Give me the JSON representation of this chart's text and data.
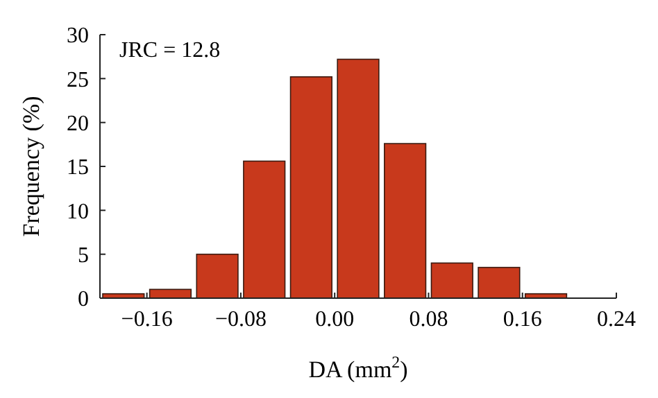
{
  "chart_data": {
    "type": "histogram",
    "xlabel": "DA (mm$^{2}$)",
    "ylabel": "Frequency (%)",
    "bins": [
      -0.2,
      -0.16,
      -0.12,
      -0.08,
      -0.04,
      0,
      0.04,
      0.08,
      0.12,
      0.16,
      0.2
    ],
    "values": [
      0.5,
      1,
      5,
      15.6,
      25.2,
      27.2,
      17.6,
      4,
      3.5,
      0.5
    ],
    "color": "#c8391c",
    "xlim": [
      -0.2,
      0.24
    ],
    "ylim": [
      0,
      30
    ],
    "xticks": [
      {
        "value": -0.16,
        "label": "−0.16"
      },
      {
        "value": -0.08,
        "label": "−0.08"
      },
      {
        "value": 0,
        "label": "0.00"
      },
      {
        "value": 0.08,
        "label": "0.08"
      },
      {
        "value": 0.16,
        "label": "0.16"
      },
      {
        "value": 0.24,
        "label": "0.24"
      }
    ],
    "yticks": [
      0,
      5,
      10,
      15,
      20,
      25,
      30
    ],
    "annotations": [
      "JRC = 12.8"
    ],
    "grid": false
  }
}
